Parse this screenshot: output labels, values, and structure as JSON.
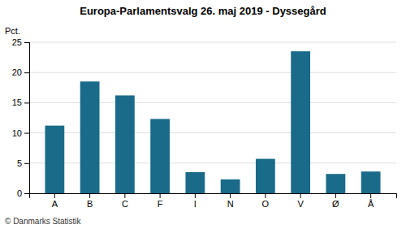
{
  "chart_data": {
    "type": "bar",
    "title": "Europa-Parlamentsvalg 26. maj 2019 - Dyssegård",
    "categories": [
      "A",
      "B",
      "C",
      "F",
      "I",
      "N",
      "O",
      "V",
      "Ø",
      "Å"
    ],
    "values": [
      11.2,
      18.5,
      16.2,
      12.3,
      3.5,
      2.3,
      5.7,
      23.5,
      3.2,
      3.6
    ],
    "color": "#1a6b8a",
    "ylabel": "Pct.",
    "ylim": [
      0,
      25
    ],
    "yticks": [
      0,
      5,
      10,
      15,
      20,
      25
    ],
    "grid": true,
    "footer": "© Danmarks Statistik"
  }
}
